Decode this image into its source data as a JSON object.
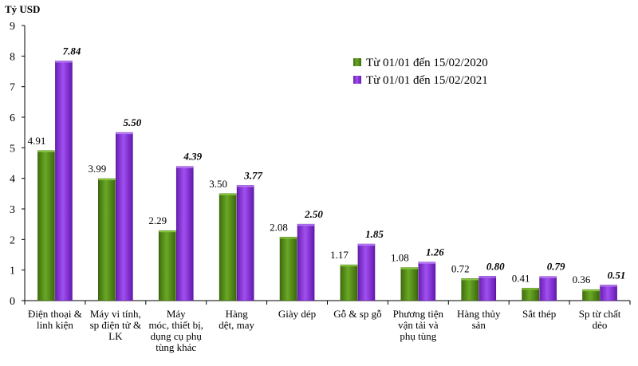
{
  "chart_data": {
    "type": "bar",
    "ylabel": "Tỷ USD",
    "xlabel": "",
    "ylim": [
      0,
      9
    ],
    "yticks": [
      0,
      1,
      2,
      3,
      4,
      5,
      6,
      7,
      8,
      9
    ],
    "grid": false,
    "legend_position": "top-right",
    "categories": [
      [
        "Điện thoại &",
        "linh kiện"
      ],
      [
        "Máy vi tính,",
        "sp điện tử &",
        "LK"
      ],
      [
        "Máy",
        "móc, thiết bị,",
        "dụng cụ phụ",
        "tùng khác"
      ],
      [
        "Hàng",
        "dệt, may"
      ],
      [
        "Giày dép"
      ],
      [
        "Gỗ & sp gỗ"
      ],
      [
        "Phương tiện",
        "vận tải và",
        "phụ tùng"
      ],
      [
        "Hàng thủy",
        "sản"
      ],
      [
        "Sắt thép"
      ],
      [
        "Sp từ chất",
        "dẻo"
      ]
    ],
    "series": [
      {
        "name": "Từ 01/01 đến 15/02/2020",
        "color": "#4f8a10",
        "values": [
          4.91,
          3.99,
          2.29,
          3.5,
          2.08,
          1.17,
          1.08,
          0.72,
          0.41,
          0.36
        ],
        "labels": [
          "4.91",
          "3.99",
          "2.29",
          "3.50",
          "2.08",
          "1.17",
          "1.08",
          "0.72",
          "0.41",
          "0.36"
        ]
      },
      {
        "name": "Từ 01/01 đến 15/02/2021",
        "color": "#8b2be2",
        "values": [
          7.84,
          5.5,
          4.39,
          3.77,
          2.5,
          1.85,
          1.26,
          0.8,
          0.79,
          0.51
        ],
        "labels": [
          "7.84",
          "5.50",
          "4.39",
          "3.77",
          "2.50",
          "1.85",
          "1.26",
          "0.80",
          "0.79",
          "0.51"
        ]
      }
    ]
  }
}
